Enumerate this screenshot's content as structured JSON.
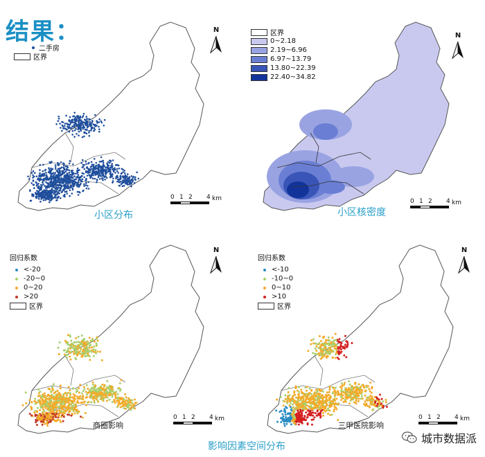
{
  "title": "结果：",
  "north_label": "N",
  "scale": {
    "ticks": [
      "0",
      "1",
      "2",
      "4"
    ],
    "unit": "km"
  },
  "panel1": {
    "caption": "小区分布",
    "legend": [
      {
        "label": "二手房",
        "kind": "dot",
        "color": "#1f4e9c"
      },
      {
        "label": "区界",
        "kind": "box",
        "color": "#ffffff"
      }
    ]
  },
  "panel2": {
    "caption": "小区核密度",
    "legend": [
      {
        "label": "区界",
        "color": "#ffffff"
      },
      {
        "label": "0~2.18",
        "color": "#c9c9f0"
      },
      {
        "label": "2.19~6.96",
        "color": "#9aa3e2"
      },
      {
        "label": "6.97~13.79",
        "color": "#6a7fd4"
      },
      {
        "label": "13.80~22.39",
        "color": "#3a55b8"
      },
      {
        "label": "22.40~34.82",
        "color": "#12339a"
      }
    ]
  },
  "panel3": {
    "caption": "商圈影响",
    "legend_title": "回归系数",
    "legend": [
      {
        "label": "<-20",
        "color": "#2b8cc4"
      },
      {
        "label": "-20~0",
        "color": "#a8cf6e"
      },
      {
        "label": "0~20",
        "color": "#f3ab2a"
      },
      {
        "label": ">20",
        "color": "#c0392b"
      }
    ],
    "boundary_label": "区界"
  },
  "panel4": {
    "caption": "三甲医院影响",
    "legend_title": "回归系数",
    "legend": [
      {
        "label": "<-10",
        "color": "#2b8cc4"
      },
      {
        "label": "-10~0",
        "color": "#a8cf6e"
      },
      {
        "label": "0~10",
        "color": "#f3ab2a"
      },
      {
        "label": ">10",
        "color": "#d42020"
      }
    ],
    "boundary_label": "区界"
  },
  "bottom_caption": "影响因素空间分布",
  "watermark": "城市数据派"
}
